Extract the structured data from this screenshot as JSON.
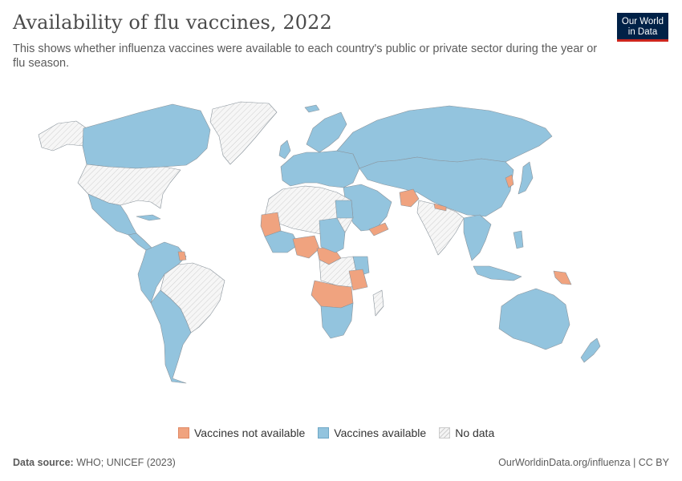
{
  "header": {
    "title": "Availability of flu vaccines, 2022",
    "subtitle": "This shows whether influenza vaccines were available to each country's public or private sector during the year or flu season."
  },
  "logo": {
    "line1": "Our World",
    "line2": "in Data"
  },
  "legend": {
    "items": [
      {
        "label": "Vaccines not available",
        "color": "#f0a37f"
      },
      {
        "label": "Vaccines available",
        "color": "#93c4de"
      },
      {
        "label": "No data",
        "color": "#f4f4f4"
      }
    ]
  },
  "footer": {
    "source_label": "Data source:",
    "source_value": "WHO; UNICEF (2023)",
    "url": "OurWorldinData.org/influenza | CC BY"
  },
  "colors": {
    "not_available": "#f0a37f",
    "available": "#93c4de",
    "no_data": "#f4f4f4",
    "border": "#7f8a93"
  }
}
